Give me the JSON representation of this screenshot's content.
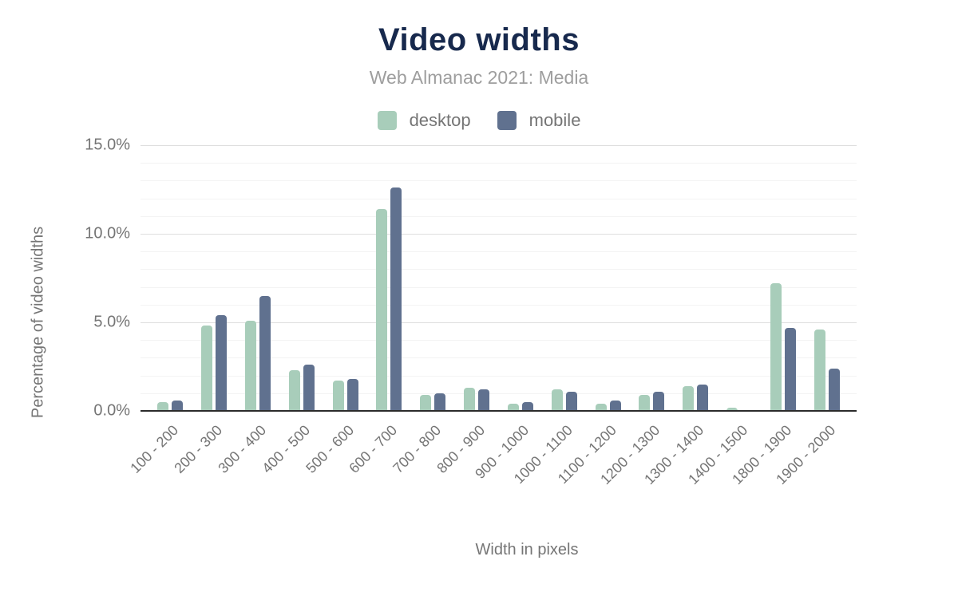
{
  "title": "Video widths",
  "subtitle": "Web Almanac 2021: Media",
  "legend": {
    "items": [
      {
        "label": "desktop",
        "color": "#a8cdba"
      },
      {
        "label": "mobile",
        "color": "#60718f"
      }
    ]
  },
  "colors": {
    "title": "#17294d",
    "subtitle": "#9e9e9e",
    "axis_text": "#757575",
    "major_grid": "#dedede",
    "minor_grid": "#f3f3f3",
    "baseline": "#2b2b2b",
    "background": "#ffffff",
    "desktop_bar": "#a8cdba",
    "mobile_bar": "#60718f"
  },
  "chart_data": {
    "type": "bar",
    "title": "Video widths",
    "subtitle": "Web Almanac 2021: Media",
    "xlabel": "Width in pixels",
    "ylabel": "Percentage of video widths",
    "ylim": [
      0,
      15
    ],
    "grid": "on",
    "minor_grid_step_percent": 1,
    "legend_position": "top",
    "yticks": [
      {
        "value": 0,
        "label": "0.0%"
      },
      {
        "value": 5,
        "label": "5.0%"
      },
      {
        "value": 10,
        "label": "10.0%"
      },
      {
        "value": 15,
        "label": "15.0%"
      }
    ],
    "categories": [
      "100 - 200",
      "200 - 300",
      "300 - 400",
      "400 - 500",
      "500 - 600",
      "600 - 700",
      "700 - 800",
      "800 - 900",
      "900 - 1000",
      "1000 - 1100",
      "1100 - 1200",
      "1200 - 1300",
      "1300 - 1400",
      "1400 - 1500",
      "1800 - 1900",
      "1900 - 2000"
    ],
    "series": [
      {
        "name": "desktop",
        "color": "#a8cdba",
        "values": [
          0.5,
          4.8,
          5.1,
          2.3,
          1.7,
          11.4,
          0.9,
          1.3,
          0.4,
          1.2,
          0.4,
          0.9,
          1.4,
          0.2,
          7.2,
          4.6
        ]
      },
      {
        "name": "mobile",
        "color": "#60718f",
        "values": [
          0.6,
          5.4,
          6.5,
          2.6,
          1.8,
          12.6,
          1.0,
          1.2,
          0.5,
          1.1,
          0.6,
          1.1,
          1.5,
          0.0,
          4.7,
          2.4
        ]
      }
    ]
  }
}
